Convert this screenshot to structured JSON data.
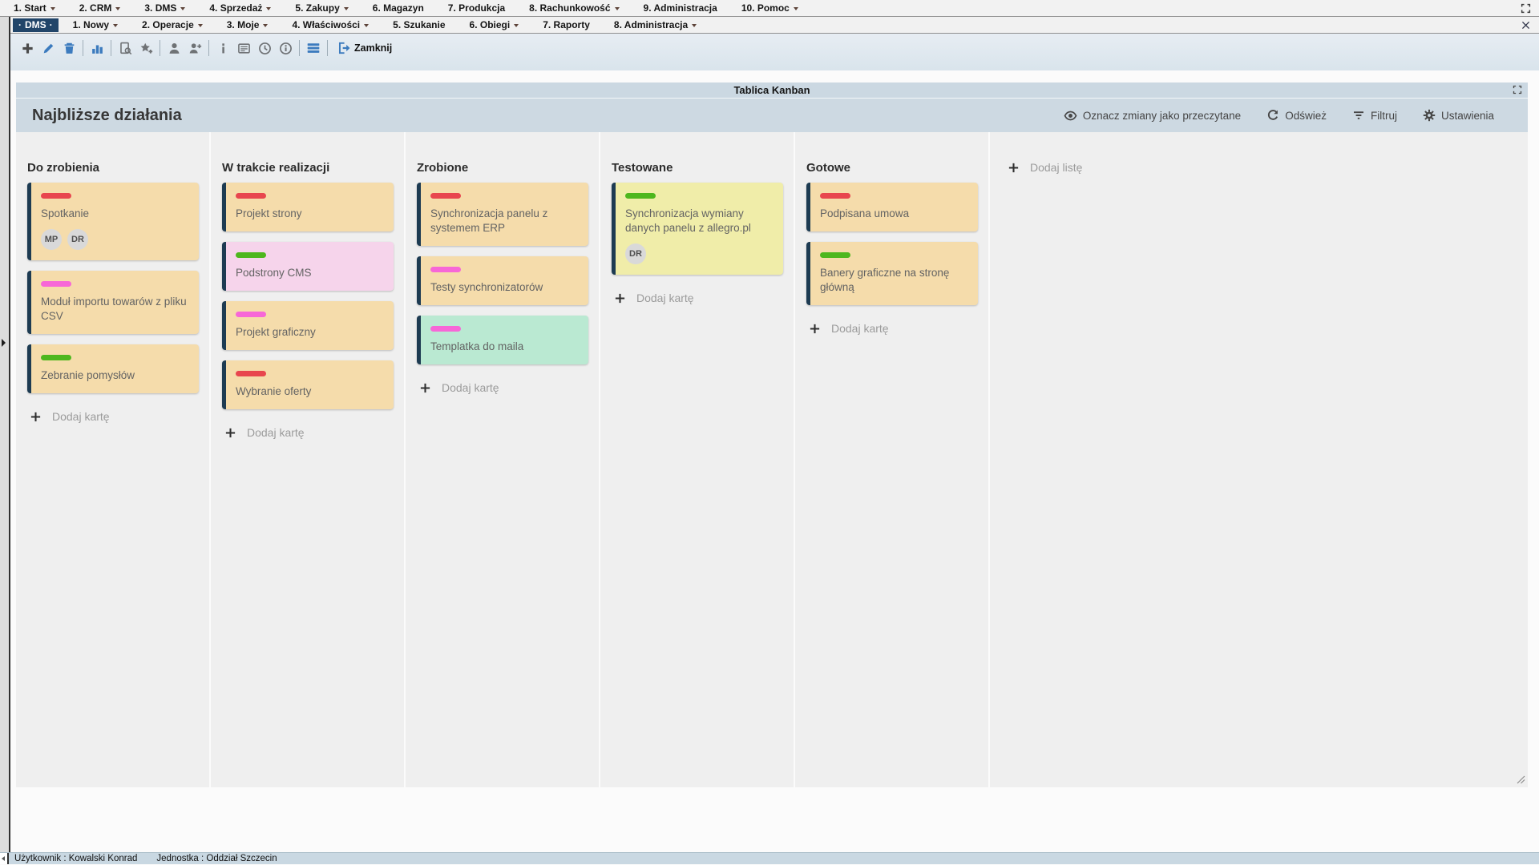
{
  "top_menu": {
    "items": [
      {
        "label": "1. Start",
        "caret": true
      },
      {
        "label": "2. CRM",
        "caret": true
      },
      {
        "label": "3. DMS",
        "caret": true
      },
      {
        "label": "4. Sprzedaż",
        "caret": true
      },
      {
        "label": "5. Zakupy",
        "caret": true
      },
      {
        "label": "6. Magazyn",
        "caret": false
      },
      {
        "label": "7. Produkcja",
        "caret": false
      },
      {
        "label": "8. Rachunkowość",
        "caret": true
      },
      {
        "label": "9. Administracja",
        "caret": false
      },
      {
        "label": "10. Pomoc",
        "caret": true
      }
    ]
  },
  "module_menu": {
    "active_tab": "DMS",
    "items": [
      {
        "label": "1. Nowy",
        "caret": true
      },
      {
        "label": "2. Operacje",
        "caret": true
      },
      {
        "label": "3. Moje",
        "caret": true
      },
      {
        "label": "4. Właściwości",
        "caret": true
      },
      {
        "label": "5. Szukanie",
        "caret": false
      },
      {
        "label": "6. Obiegi",
        "caret": true
      },
      {
        "label": "7. Raporty",
        "caret": false
      },
      {
        "label": "8. Administracja",
        "caret": true
      }
    ]
  },
  "toolbar": {
    "close_label": "Zamknij",
    "buttons": [
      {
        "name": "add",
        "icon": "plus",
        "style": "dark"
      },
      {
        "name": "edit",
        "icon": "pencil",
        "style": "blue"
      },
      {
        "name": "delete",
        "icon": "trash",
        "style": "blue"
      },
      {
        "separator": true
      },
      {
        "name": "statistics",
        "icon": "bar-chart",
        "style": "blue"
      },
      {
        "separator": true
      },
      {
        "name": "document-preview",
        "icon": "doc-search",
        "style": "gray"
      },
      {
        "name": "add-to-favorites",
        "icon": "star-plus",
        "style": "gray"
      },
      {
        "separator": true
      },
      {
        "name": "user",
        "icon": "person",
        "style": "gray"
      },
      {
        "name": "assign-user",
        "icon": "person-plus",
        "style": "gray"
      },
      {
        "separator": true
      },
      {
        "name": "information",
        "icon": "info",
        "style": "gray"
      },
      {
        "name": "description",
        "icon": "card-lines",
        "style": "gray"
      },
      {
        "name": "history",
        "icon": "clock",
        "style": "gray"
      },
      {
        "name": "details",
        "icon": "info-circle",
        "style": "gray"
      },
      {
        "separator": true
      },
      {
        "name": "menu",
        "icon": "hamburger",
        "style": "blue"
      },
      {
        "separator": true
      }
    ]
  },
  "window": {
    "title": "Tablica Kanban"
  },
  "board": {
    "title": "Najbliższe działania",
    "actions": [
      {
        "label": "Oznacz zmiany jako przeczytane",
        "icon": "eye"
      },
      {
        "label": "Odśwież",
        "icon": "refresh"
      },
      {
        "label": "Filtruj",
        "icon": "filter"
      },
      {
        "label": "Ustawienia",
        "icon": "gear"
      }
    ],
    "add_card_label": "Dodaj kartę",
    "add_list_label": "Dodaj listę",
    "columns": [
      {
        "title": "Do zrobienia",
        "cards": [
          {
            "label": "red",
            "title": "Spotkanie",
            "bg": "tan",
            "avatars": [
              "MP",
              "DR"
            ]
          },
          {
            "label": "pink",
            "title": "Moduł importu towarów z pliku CSV",
            "bg": "tan",
            "avatars": []
          },
          {
            "label": "green",
            "title": "Zebranie pomysłów",
            "bg": "tan",
            "avatars": []
          }
        ]
      },
      {
        "title": "W trakcie realizacji",
        "cards": [
          {
            "label": "red",
            "title": "Projekt strony",
            "bg": "tan",
            "avatars": []
          },
          {
            "label": "green",
            "title": "Podstrony CMS",
            "bg": "pink",
            "avatars": []
          },
          {
            "label": "pink",
            "title": "Projekt graficzny",
            "bg": "tan",
            "avatars": []
          },
          {
            "label": "red",
            "title": "Wybranie oferty",
            "bg": "tan",
            "avatars": []
          }
        ]
      },
      {
        "title": "Zrobione",
        "cards": [
          {
            "label": "red",
            "title": "Synchronizacja panelu z systemem ERP",
            "bg": "tan",
            "avatars": []
          },
          {
            "label": "pink",
            "title": "Testy synchronizatorów",
            "bg": "tan",
            "avatars": []
          },
          {
            "label": "pink",
            "title": "Templatka do maila",
            "bg": "mint",
            "avatars": []
          }
        ]
      },
      {
        "title": "Testowane",
        "cards": [
          {
            "label": "green",
            "title": "Synchronizacja wymiany danych panelu z allegro.pl",
            "bg": "yellow",
            "avatars": [
              "DR"
            ]
          }
        ]
      },
      {
        "title": "Gotowe",
        "cards": [
          {
            "label": "red",
            "title": "Podpisana umowa",
            "bg": "tan",
            "avatars": []
          },
          {
            "label": "green",
            "title": "Banery graficzne na stronę główną",
            "bg": "tan",
            "avatars": []
          }
        ]
      }
    ]
  },
  "status_bar": {
    "user_label": "Użytkownik : Kowalski Konrad",
    "unit_label": "Jednostka : Oddział Szczecin"
  },
  "colors": {
    "active_tab_bg": "#214569",
    "card_border": "#1d3b52",
    "label_colors": {
      "red": "#e8464e",
      "pink": "#f767d7",
      "green": "#4eb71e"
    },
    "card_colors": {
      "tan": "#f5dcab",
      "pink": "#f6d4eb",
      "mint": "#bae9d2",
      "yellow": "#f0eda9"
    }
  }
}
